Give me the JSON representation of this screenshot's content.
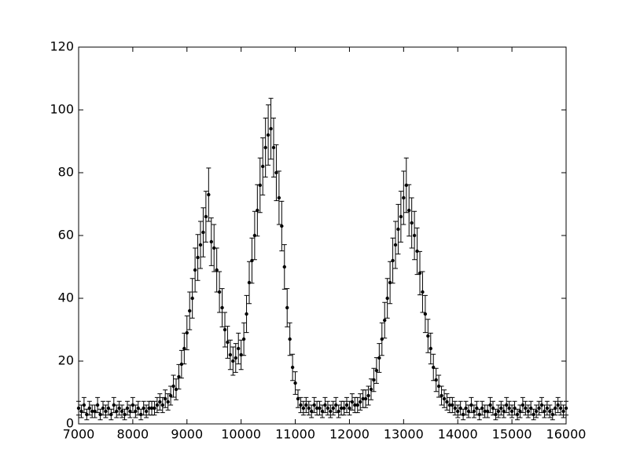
{
  "chart_data": {
    "type": "errorbar",
    "x": [
      7000,
      7050,
      7100,
      7150,
      7200,
      7250,
      7300,
      7350,
      7400,
      7450,
      7500,
      7550,
      7600,
      7650,
      7700,
      7750,
      7800,
      7850,
      7900,
      7950,
      8000,
      8050,
      8100,
      8150,
      8200,
      8250,
      8300,
      8350,
      8400,
      8450,
      8500,
      8550,
      8600,
      8650,
      8700,
      8750,
      8800,
      8850,
      8900,
      8950,
      9000,
      9050,
      9100,
      9150,
      9200,
      9250,
      9300,
      9350,
      9400,
      9450,
      9500,
      9550,
      9600,
      9650,
      9700,
      9750,
      9800,
      9850,
      9900,
      9950,
      10000,
      10050,
      10100,
      10150,
      10200,
      10250,
      10300,
      10350,
      10400,
      10450,
      10500,
      10550,
      10600,
      10650,
      10700,
      10750,
      10800,
      10850,
      10900,
      10950,
      11000,
      11050,
      11100,
      11150,
      11200,
      11250,
      11300,
      11350,
      11400,
      11450,
      11500,
      11550,
      11600,
      11650,
      11700,
      11750,
      11800,
      11850,
      11900,
      11950,
      12000,
      12050,
      12100,
      12150,
      12200,
      12250,
      12300,
      12350,
      12400,
      12450,
      12500,
      12550,
      12600,
      12650,
      12700,
      12750,
      12800,
      12850,
      12900,
      12950,
      13000,
      13050,
      13100,
      13150,
      13200,
      13250,
      13300,
      13350,
      13400,
      13450,
      13500,
      13550,
      13600,
      13650,
      13700,
      13750,
      13800,
      13850,
      13900,
      13950,
      14000,
      14050,
      14100,
      14150,
      14200,
      14250,
      14300,
      14350,
      14400,
      14450,
      14500,
      14550,
      14600,
      14650,
      14700,
      14750,
      14800,
      14850,
      14900,
      14950,
      15000,
      15050,
      15100,
      15150,
      15200,
      15250,
      15300,
      15350,
      15400,
      15450,
      15500,
      15550,
      15600,
      15650,
      15700,
      15750,
      15800,
      15850,
      15900,
      15950,
      16000
    ],
    "values": [
      5,
      4,
      6,
      3,
      5,
      4,
      4,
      6,
      3,
      5,
      4,
      5,
      3,
      6,
      4,
      5,
      4,
      3,
      5,
      4,
      6,
      4,
      5,
      3,
      5,
      4,
      5,
      5,
      5,
      6,
      7,
      6,
      8,
      7,
      9,
      12,
      11,
      15,
      19,
      24,
      29,
      36,
      40,
      49,
      53,
      57,
      61,
      66,
      73,
      58,
      56,
      49,
      42,
      37,
      30,
      26,
      22,
      20,
      21,
      24,
      22,
      27,
      35,
      45,
      52,
      60,
      68,
      76,
      82,
      88,
      92,
      94,
      88,
      80,
      72,
      63,
      50,
      37,
      27,
      18,
      13,
      8,
      6,
      5,
      6,
      5,
      4,
      6,
      5,
      5,
      4,
      6,
      5,
      4,
      5,
      6,
      4,
      5,
      5,
      6,
      5,
      7,
      6,
      6,
      7,
      8,
      8,
      9,
      11,
      14,
      17,
      21,
      27,
      33,
      40,
      45,
      52,
      57,
      62,
      66,
      72,
      76,
      68,
      64,
      60,
      55,
      48,
      42,
      35,
      28,
      24,
      18,
      14,
      12,
      9,
      8,
      7,
      6,
      6,
      5,
      4,
      5,
      3,
      5,
      4,
      6,
      4,
      5,
      3,
      5,
      4,
      4,
      6,
      5,
      3,
      4,
      5,
      4,
      6,
      5,
      4,
      5,
      3,
      4,
      6,
      5,
      4,
      5,
      3,
      4,
      5,
      6,
      4,
      5,
      4,
      3,
      5,
      6,
      5,
      4,
      5
    ],
    "errors": [
      2.2,
      2,
      2.4,
      1.7,
      2.2,
      2,
      2,
      2.4,
      1.7,
      2.2,
      2,
      2.2,
      1.7,
      2.4,
      2,
      2.2,
      2,
      1.7,
      2.2,
      2,
      2.4,
      2,
      2.2,
      1.7,
      2.2,
      2,
      2.2,
      2.2,
      2.2,
      2.4,
      2.6,
      2.4,
      2.8,
      2.6,
      3,
      3.5,
      3.3,
      3.9,
      4.4,
      4.9,
      5.4,
      6,
      6.3,
      7,
      7.3,
      7.5,
      7.8,
      8.1,
      8.5,
      7.6,
      7.5,
      7,
      6.5,
      6.1,
      5.5,
      5.1,
      4.7,
      4.5,
      4.6,
      4.9,
      4.7,
      5.2,
      5.9,
      6.7,
      7.2,
      7.7,
      8.2,
      8.7,
      9.1,
      9.4,
      9.6,
      9.7,
      9.4,
      8.9,
      8.5,
      7.9,
      7.1,
      6.1,
      5.2,
      4.2,
      3.6,
      2.8,
      2.4,
      2.2,
      2.4,
      2.2,
      2,
      2.4,
      2.2,
      2.2,
      2,
      2.4,
      2.2,
      2,
      2.2,
      2.4,
      2,
      2.2,
      2.2,
      2.4,
      2.2,
      2.6,
      2.4,
      2.4,
      2.6,
      2.8,
      2.8,
      3,
      3.3,
      3.7,
      4.1,
      4.6,
      5.2,
      5.7,
      6.3,
      6.7,
      7.2,
      7.5,
      7.9,
      8.1,
      8.5,
      8.7,
      8.2,
      8,
      7.7,
      7.4,
      6.9,
      6.5,
      5.9,
      5.3,
      4.9,
      4.2,
      3.7,
      3.5,
      3,
      2.8,
      2.6,
      2.4,
      2.4,
      2.2,
      2,
      2.2,
      1.7,
      2.2,
      2,
      2.4,
      2,
      2.2,
      1.7,
      2.2,
      2,
      2,
      2.4,
      2.2,
      1.7,
      2,
      2.2,
      2,
      2.4,
      2.2,
      2,
      2.2,
      1.7,
      2,
      2.4,
      2.2,
      2,
      2.2,
      1.7,
      2,
      2.2,
      2.4,
      2,
      2.2,
      2,
      1.7,
      2.2,
      2.4,
      2.2,
      2,
      2.2
    ],
    "color": "#000000",
    "xlim": [
      7000,
      16000
    ],
    "ylim": [
      0,
      120
    ],
    "xticks": [
      7000,
      8000,
      9000,
      10000,
      11000,
      12000,
      13000,
      14000,
      15000,
      16000
    ],
    "yticks": [
      0,
      20,
      40,
      60,
      80,
      100,
      120
    ]
  }
}
